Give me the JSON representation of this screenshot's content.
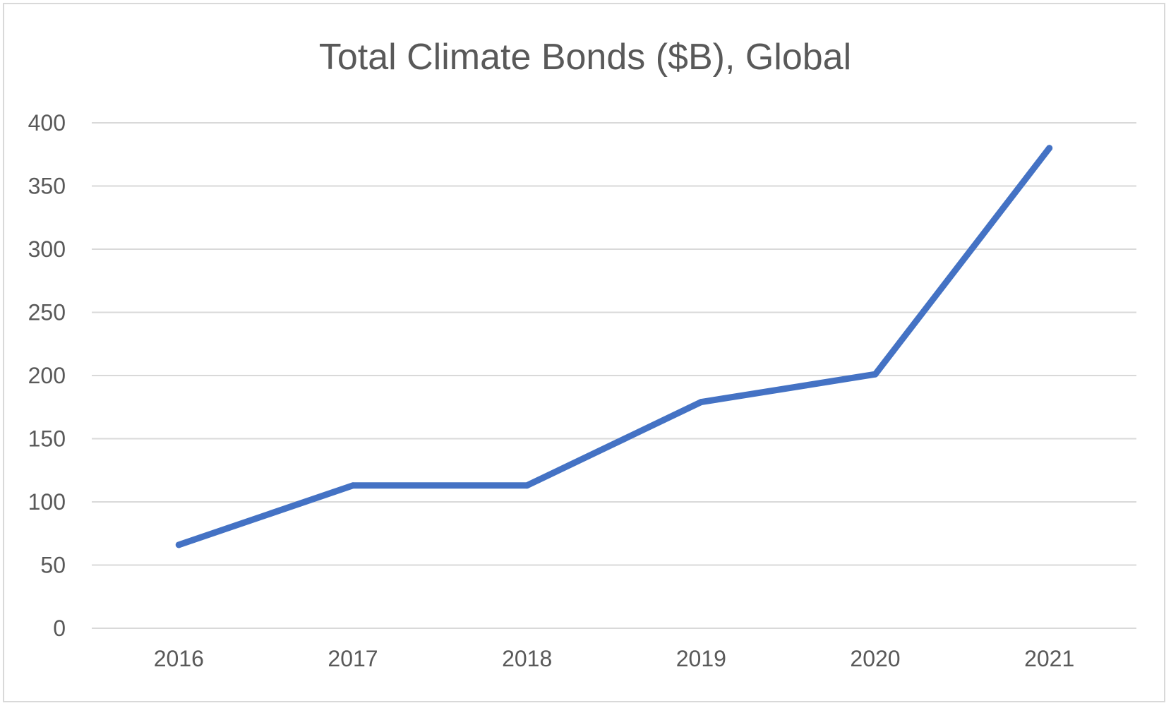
{
  "chart_data": {
    "type": "line",
    "title": "Total Climate Bonds ($B), Global",
    "xlabel": "",
    "ylabel": "",
    "categories": [
      "2016",
      "2017",
      "2018",
      "2019",
      "2020",
      "2021"
    ],
    "series": [
      {
        "values": [
          66,
          113,
          113,
          179,
          201,
          380
        ],
        "color": "#4472c4"
      }
    ],
    "ylim": [
      0,
      400
    ],
    "yticks": [
      "0",
      "50",
      "100",
      "150",
      "200",
      "250",
      "300",
      "350",
      "400"
    ],
    "grid": true,
    "legend": "none"
  }
}
